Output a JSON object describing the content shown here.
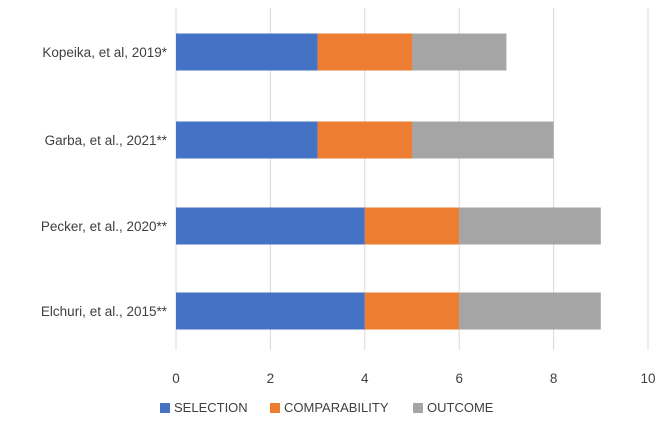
{
  "chart_data": {
    "type": "bar",
    "orientation": "horizontal",
    "stacked": true,
    "categories": [
      "Kopeika, et al, 2019*",
      "Garba, et al., 2021**",
      "Pecker, et al., 2020**",
      "Elchuri, et al., 2015**"
    ],
    "series": [
      {
        "name": "SELECTION",
        "color": "#4472C4",
        "values": [
          3,
          3,
          4,
          4
        ]
      },
      {
        "name": "COMPARABILITY",
        "color": "#ED7D31",
        "values": [
          2,
          2,
          2,
          2
        ]
      },
      {
        "name": "OUTCOME",
        "color": "#A5A5A5",
        "values": [
          2,
          3,
          3,
          3
        ]
      }
    ],
    "xlim": [
      0,
      10
    ],
    "xticks": [
      "0",
      "2",
      "4",
      "6",
      "8",
      "10"
    ],
    "title": "",
    "xlabel": "",
    "ylabel": "",
    "grid": "vertical",
    "legend_position": "bottom"
  }
}
